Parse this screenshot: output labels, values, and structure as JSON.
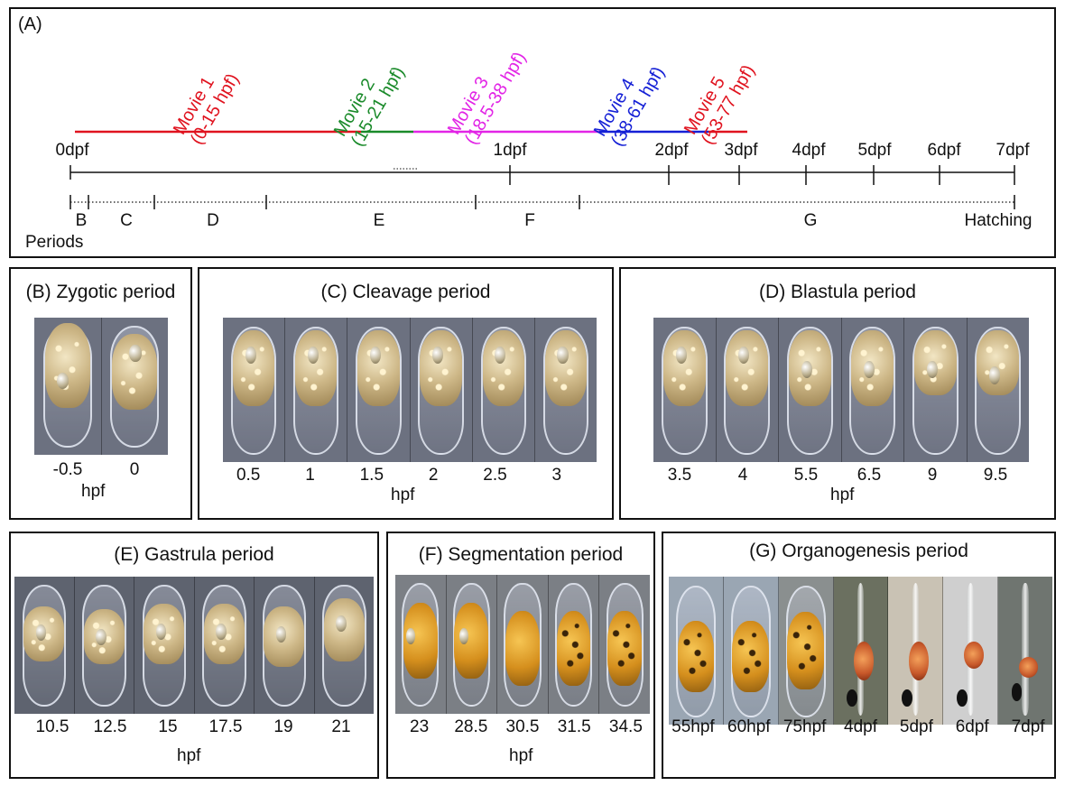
{
  "panelA": {
    "label": "(A)",
    "movies": [
      {
        "line1": "Movie 1",
        "line2": "(0-15 hpf)",
        "color": "#e0131f"
      },
      {
        "line1": "Movie 2",
        "line2": "(15-21 hpf)",
        "color": "#1a8a2a"
      },
      {
        "line1": "Movie 3",
        "line2": "(18.5-38 hpf)",
        "color": "#e225e6"
      },
      {
        "line1": "Movie 4",
        "line2": "(38-61 hpf)",
        "color": "#1520d6"
      },
      {
        "line1": "Movie 5",
        "line2": "(53-77 hpf)",
        "color": "#e0131f"
      }
    ],
    "dpf_ticks": [
      "0dpf",
      "1dpf",
      "2dpf",
      "3dpf",
      "4dpf",
      "5dpf",
      "6dpf",
      "7dpf"
    ],
    "period_letters": [
      "B",
      "C",
      "D",
      "E",
      "F",
      "G"
    ],
    "hatching": "Hatching",
    "periods_label": "Periods"
  },
  "panels": {
    "B": {
      "title": "(B) Zygotic period",
      "times": [
        "-0.5",
        "0"
      ],
      "unit": "hpf"
    },
    "C": {
      "title": "(C) Cleavage period",
      "times": [
        "0.5",
        "1",
        "1.5",
        "2",
        "2.5",
        "3"
      ],
      "unit": "hpf"
    },
    "D": {
      "title": "(D) Blastula period",
      "times": [
        "3.5",
        "4",
        "5.5",
        "6.5",
        "9",
        "9.5"
      ],
      "unit": "hpf"
    },
    "E": {
      "title": "(E) Gastrula period",
      "times": [
        "10.5",
        "12.5",
        "15",
        "17.5",
        "19",
        "21"
      ],
      "unit": "hpf"
    },
    "F": {
      "title": "(F) Segmentation period",
      "times": [
        "23",
        "28.5",
        "30.5",
        "31.5",
        "34.5"
      ],
      "unit": "hpf"
    },
    "G": {
      "title": "(G) Organogenesis period",
      "times": [
        "55hpf",
        "60hpf",
        "75hpf",
        "4dpf",
        "5dpf",
        "6dpf",
        "7dpf"
      ]
    }
  }
}
